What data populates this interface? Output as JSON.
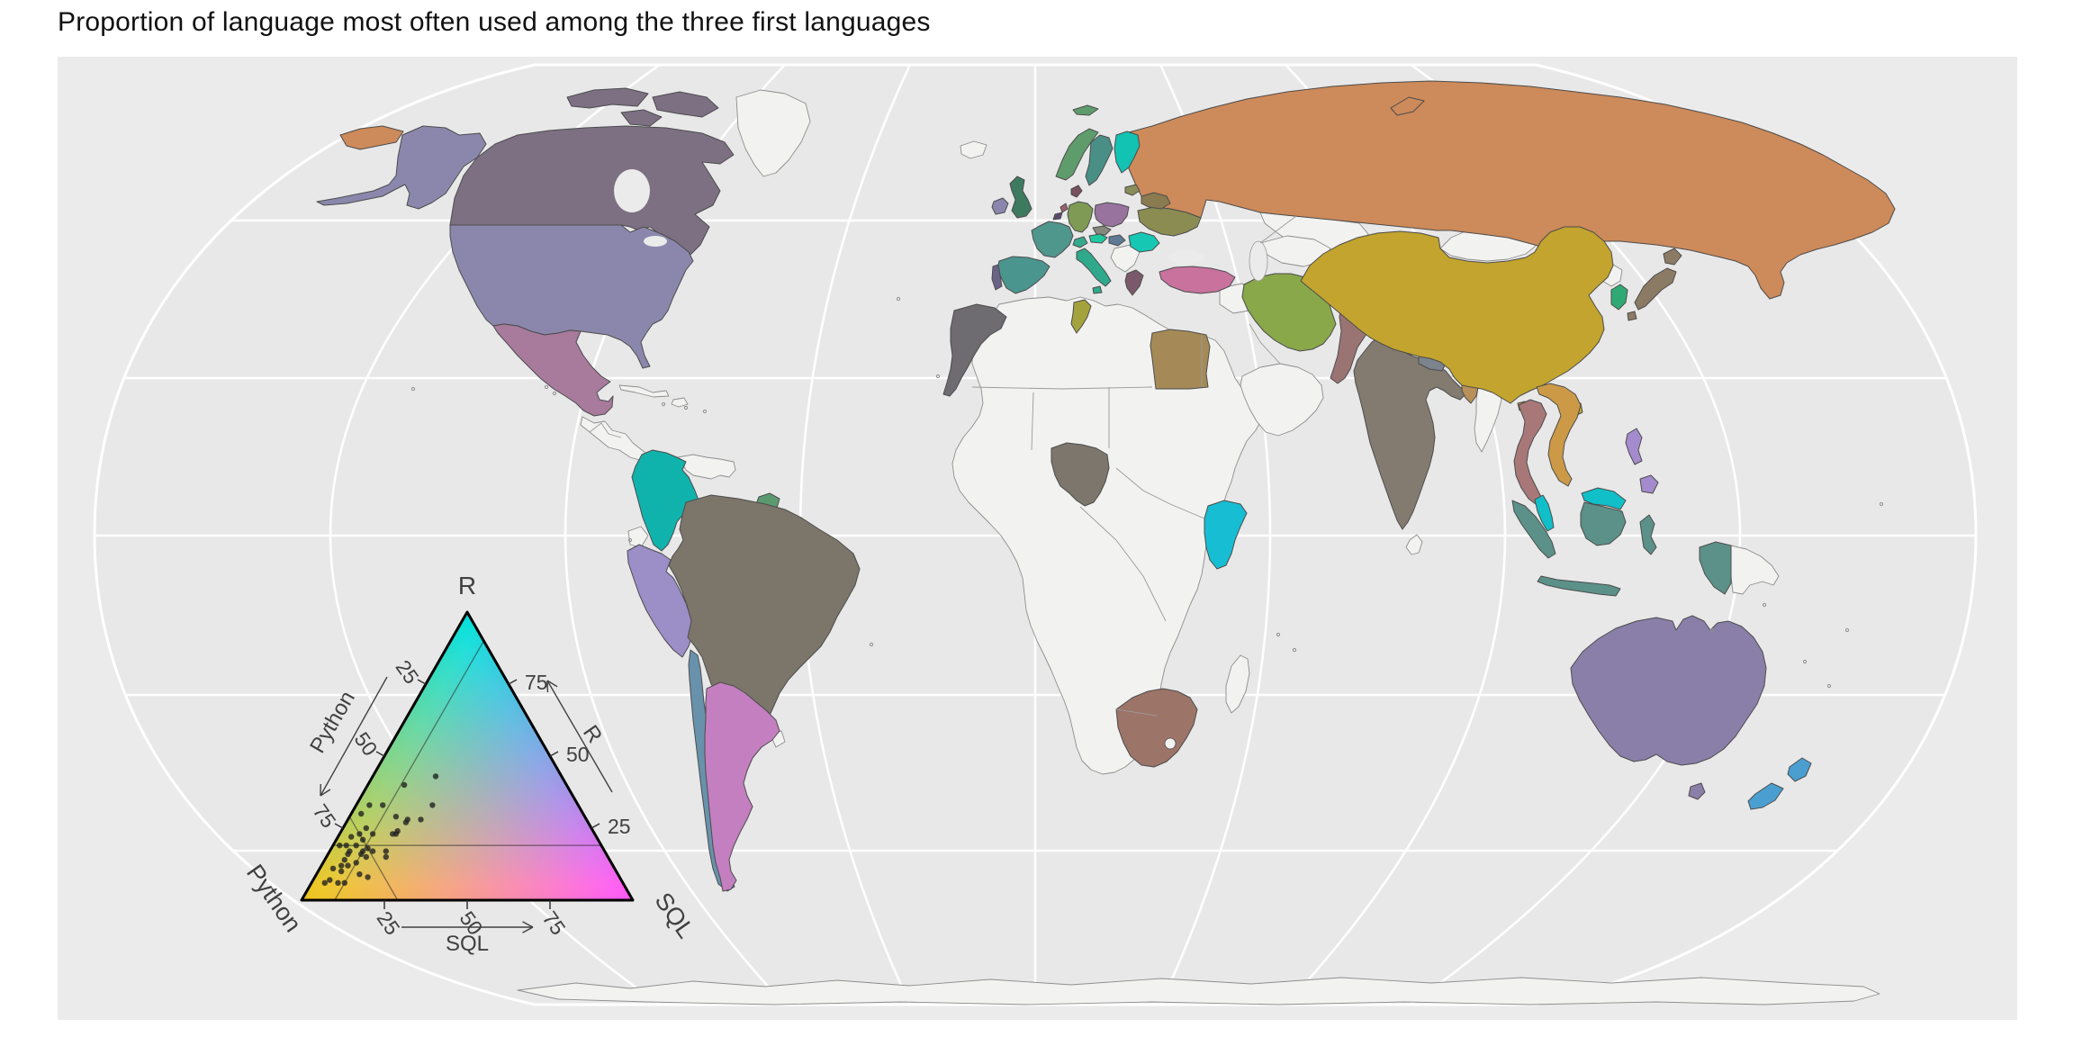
{
  "title": "Proportion of language most often used among the three first languages",
  "panel": {
    "background": "#ebebeb",
    "globe_fill": "#e8e8e9",
    "graticule": "#ffffff",
    "no_data_fill": "#f2f2f1",
    "border_filled": "#4c4c4c",
    "border_nodata": "#8d8d8d"
  },
  "chart_data": {
    "type": "choropleth_map_with_ternary_legend",
    "title": "Proportion of language most often used among the three first languages",
    "legend": {
      "corner_labels": {
        "top": "R",
        "bottom_left": "Python",
        "bottom_right": "SQL"
      },
      "axis_labels": {
        "left": "Python",
        "right": "R",
        "bottom": "SQL"
      },
      "ticks": [
        25,
        50,
        75
      ],
      "corner_colors": {
        "r": "#00ddd8",
        "python": "#ecc218",
        "sql": "#ff55ef"
      },
      "center_composition": {
        "python": 71,
        "sql": 10,
        "r": 19
      },
      "points": [
        {
          "python": 38,
          "sql": 19,
          "r": 43
        },
        {
          "python": 49,
          "sql": 11,
          "r": 40
        },
        {
          "python": 44,
          "sql": 23,
          "r": 33
        },
        {
          "python": 50,
          "sql": 22,
          "r": 28
        },
        {
          "python": 57,
          "sql": 14,
          "r": 29
        },
        {
          "python": 54,
          "sql": 18,
          "r": 28
        },
        {
          "python": 60,
          "sql": 17,
          "r": 23
        },
        {
          "python": 66,
          "sql": 17,
          "r": 17
        },
        {
          "python": 63,
          "sql": 4,
          "r": 33
        },
        {
          "python": 59,
          "sql": 8,
          "r": 33
        },
        {
          "python": 67,
          "sql": 3,
          "r": 30
        },
        {
          "python": 55,
          "sql": 18,
          "r": 27
        },
        {
          "python": 68,
          "sql": 7,
          "r": 25
        },
        {
          "python": 67,
          "sql": 10,
          "r": 23
        },
        {
          "python": 71,
          "sql": 6,
          "r": 23
        },
        {
          "python": 74,
          "sql": 4,
          "r": 22
        },
        {
          "python": 71,
          "sql": 8,
          "r": 21
        },
        {
          "python": 77,
          "sql": 4,
          "r": 19
        },
        {
          "python": 74,
          "sql": 7,
          "r": 19
        },
        {
          "python": 77,
          "sql": 6,
          "r": 17
        },
        {
          "python": 79,
          "sql": 2,
          "r": 19
        },
        {
          "python": 73,
          "sql": 10,
          "r": 17
        },
        {
          "python": 71,
          "sql": 11,
          "r": 18
        },
        {
          "python": 70,
          "sql": 13,
          "r": 17
        },
        {
          "python": 74,
          "sql": 10,
          "r": 16
        },
        {
          "python": 73,
          "sql": 12,
          "r": 15
        },
        {
          "python": 78,
          "sql": 6,
          "r": 16
        },
        {
          "python": 80,
          "sql": 6,
          "r": 14
        },
        {
          "python": 82,
          "sql": 6,
          "r": 12
        },
        {
          "python": 80,
          "sql": 8,
          "r": 12
        },
        {
          "python": 77,
          "sql": 10,
          "r": 13
        },
        {
          "python": 83,
          "sql": 7,
          "r": 10
        },
        {
          "python": 78,
          "sql": 13,
          "r": 9
        },
        {
          "python": 88,
          "sql": 5,
          "r": 7
        },
        {
          "python": 86,
          "sql": 8,
          "r": 6
        },
        {
          "python": 67,
          "sql": 18,
          "r": 15
        },
        {
          "python": 59,
          "sql": 17,
          "r": 24
        },
        {
          "python": 61,
          "sql": 16,
          "r": 23
        },
        {
          "python": 85,
          "sql": 4,
          "r": 11
        },
        {
          "python": 90,
          "sql": 4,
          "r": 6
        },
        {
          "python": 84,
          "sql": 10,
          "r": 6
        },
        {
          "python": 76,
          "sql": 16,
          "r": 8
        }
      ]
    },
    "countries": {
      "canada": {
        "name": "Canada",
        "color": "#7d7083"
      },
      "usa": {
        "name": "United States",
        "color": "#8b87ac"
      },
      "mexico": {
        "name": "Mexico",
        "color": "#a87a9c"
      },
      "colombia": {
        "name": "Colombia",
        "color": "#10b3ac"
      },
      "guyana": {
        "name": "Guyana",
        "color": "#5b9a70"
      },
      "peru": {
        "name": "Peru",
        "color": "#9c8fc8"
      },
      "brazil": {
        "name": "Brazil",
        "color": "#7c756a"
      },
      "chile": {
        "name": "Chile",
        "color": "#6892ab"
      },
      "argentina": {
        "name": "Argentina",
        "color": "#c47fc0"
      },
      "morocco": {
        "name": "Morocco",
        "color": "#6e6b71"
      },
      "tunisia": {
        "name": "Tunisia",
        "color": "#a4a23c"
      },
      "egypt": {
        "name": "Egypt",
        "color": "#a58a57"
      },
      "nigeria": {
        "name": "Nigeria",
        "color": "#7c766c"
      },
      "kenya": {
        "name": "Kenya",
        "color": "#17bdd2"
      },
      "southafrica": {
        "name": "South Africa",
        "color": "#9c7468"
      },
      "norway": {
        "name": "Norway",
        "color": "#5f9c6c"
      },
      "sweden": {
        "name": "Sweden",
        "color": "#4a8f85"
      },
      "finland": {
        "name": "Finland",
        "color": "#12c2b2"
      },
      "denmark": {
        "name": "Denmark",
        "color": "#7a505f"
      },
      "lithuania": {
        "name": "Lithuania",
        "color": "#8a8c5a"
      },
      "uk": {
        "name": "United Kingdom",
        "color": "#3d7a60"
      },
      "ireland": {
        "name": "Ireland",
        "color": "#8a86ad"
      },
      "france": {
        "name": "France",
        "color": "#4f968c"
      },
      "spain": {
        "name": "Spain",
        "color": "#4a958d"
      },
      "portugal": {
        "name": "Portugal",
        "color": "#6b6385"
      },
      "germany": {
        "name": "Germany",
        "color": "#7f9a55"
      },
      "netherlands": {
        "name": "Netherlands",
        "color": "#9a5f6f"
      },
      "belgium": {
        "name": "Belgium",
        "color": "#5a4a70"
      },
      "poland": {
        "name": "Poland",
        "color": "#97739d"
      },
      "czech": {
        "name": "Czechia",
        "color": "#85887a"
      },
      "austria": {
        "name": "Austria",
        "color": "#1fc9a0"
      },
      "switzerland": {
        "name": "Switzerland",
        "color": "#35a98c"
      },
      "hungary": {
        "name": "Hungary",
        "color": "#5f7a96"
      },
      "italy": {
        "name": "Italy",
        "color": "#2fa88b"
      },
      "romania": {
        "name": "Romania",
        "color": "#16c8b4"
      },
      "ukraine": {
        "name": "Ukraine",
        "color": "#8a8c52"
      },
      "belarus": {
        "name": "Belarus",
        "color": "#8a7b50"
      },
      "greece": {
        "name": "Greece",
        "color": "#7a5a6a"
      },
      "turkey": {
        "name": "Turkey",
        "color": "#c9729e"
      },
      "russia": {
        "name": "Russia",
        "color": "#cd8a5a"
      },
      "iran": {
        "name": "Iran",
        "color": "#88a84a"
      },
      "pakistan": {
        "name": "Pakistan",
        "color": "#9a7473"
      },
      "india": {
        "name": "India",
        "color": "#837b70"
      },
      "nepal": {
        "name": "Nepal",
        "color": "#7b838c"
      },
      "bangladesh": {
        "name": "Bangladesh",
        "color": "#b9905a"
      },
      "china": {
        "name": "China",
        "color": "#c2a42e"
      },
      "thailand": {
        "name": "Thailand",
        "color": "#a87878"
      },
      "vietnam": {
        "name": "Viet Nam",
        "color": "#cc9a46"
      },
      "malaysia": {
        "name": "Malaysia",
        "color": "#10bfc8"
      },
      "indonesia": {
        "name": "Indonesia",
        "color": "#5b9188"
      },
      "philippines": {
        "name": "Philippines",
        "color": "#a48bcd"
      },
      "japan": {
        "name": "Japan",
        "color": "#8c7b64"
      },
      "southkorea": {
        "name": "South Korea",
        "color": "#2faa74"
      },
      "australia": {
        "name": "Australia",
        "color": "#8a7fa9"
      },
      "newzealand": {
        "name": "New Zealand",
        "color": "#4a9fd0"
      },
      "greenland": {
        "name": "Greenland",
        "color": null
      },
      "iceland": {
        "name": "Iceland",
        "color": null
      },
      "centralamerica": {
        "name": "Central America",
        "color": null
      },
      "cuba": {
        "name": "Cuba",
        "color": null
      },
      "hispaniola": {
        "name": "Hispaniola",
        "color": null
      },
      "venezuela": {
        "name": "Venezuela",
        "color": null
      },
      "ecuador": {
        "name": "Ecuador",
        "color": null
      },
      "bolivia": {
        "name": "Bolivia",
        "color": null
      },
      "paraguay": {
        "name": "Paraguay",
        "color": null
      },
      "uruguay": {
        "name": "Uruguay",
        "color": null
      },
      "africa_other": {
        "name": "Africa (no data)",
        "color": null
      },
      "madagascar": {
        "name": "Madagascar",
        "color": null
      },
      "kazakhstan": {
        "name": "Kazakhstan",
        "color": null
      },
      "centralasia": {
        "name": "Central Asia",
        "color": null
      },
      "afghanistan": {
        "name": "Afghanistan",
        "color": null
      },
      "iraq": {
        "name": "Iraq",
        "color": null
      },
      "arabia": {
        "name": "Saudi Arabia",
        "color": null
      },
      "mongolia": {
        "name": "Mongolia",
        "color": null
      },
      "northkorea": {
        "name": "North Korea",
        "color": null
      },
      "myanmar": {
        "name": "Myanmar",
        "color": null
      },
      "srilanka": {
        "name": "Sri Lanka",
        "color": null
      },
      "png": {
        "name": "Papua New Guinea",
        "color": null
      },
      "balkans": {
        "name": "Balkans",
        "color": null
      },
      "antarctica": {
        "name": "Antarctica",
        "color": null
      }
    }
  }
}
